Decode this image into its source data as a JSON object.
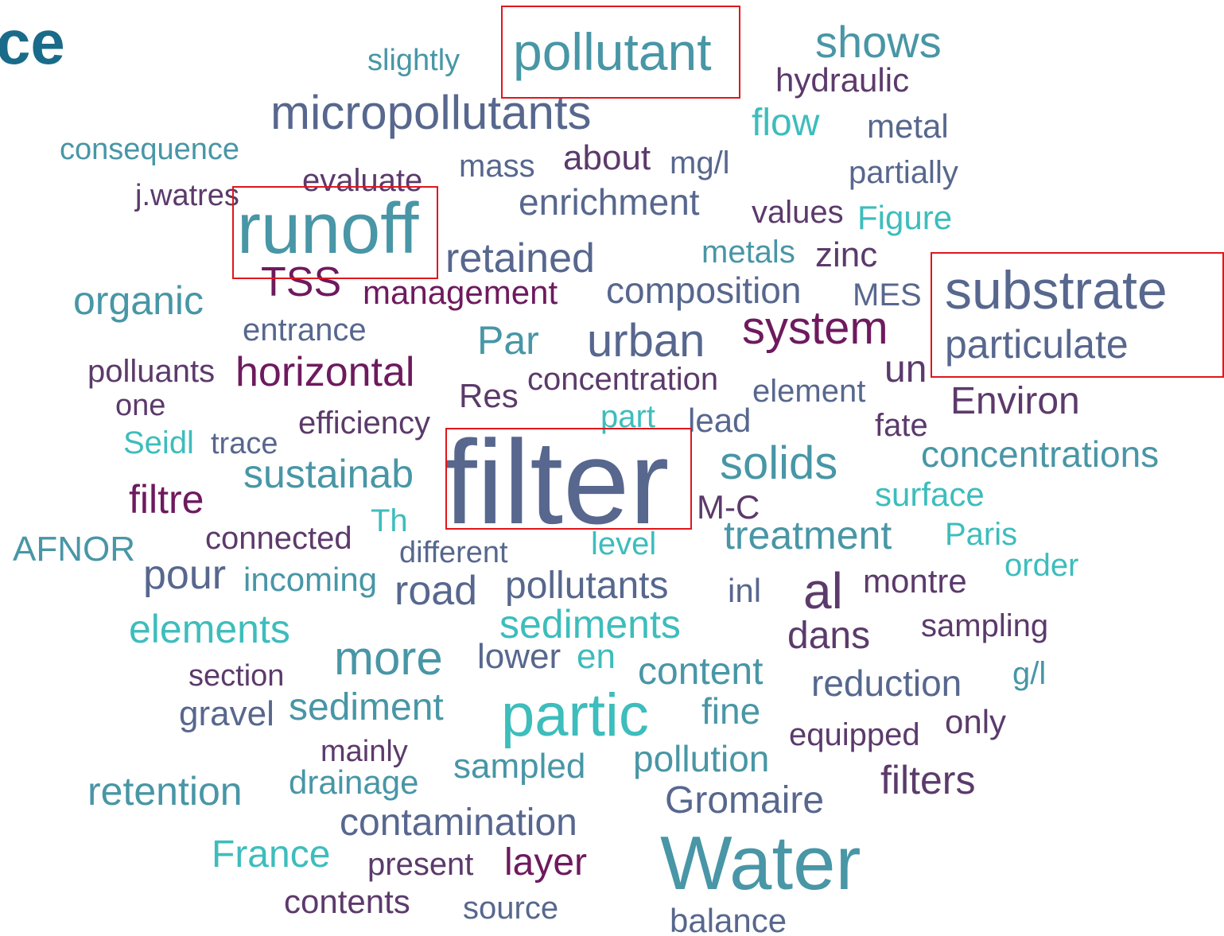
{
  "header": {
    "title_fragment": "ce"
  },
  "words": [
    "slightly",
    "pollutant",
    "shows",
    "hydraulic",
    "micropollutants",
    "flow",
    "metal",
    "consequence",
    "mass",
    "about",
    "mg/l",
    "evaluate",
    "partially",
    "j.watres",
    "enrichment",
    "runoff",
    "values",
    "Figure",
    "retained",
    "metals",
    "zinc",
    "TSS",
    "organic",
    "management",
    "composition",
    "MES",
    "substrate",
    "entrance",
    "Par",
    "urban",
    "system",
    "particulate",
    "polluants",
    "horizontal",
    "un",
    "concentration",
    "element",
    "Res",
    "one",
    "Environ",
    "part",
    "lead",
    "fate",
    "efficiency",
    "Seidl",
    "trace",
    "filter",
    "solids",
    "concentrations",
    "sustainab",
    "filtre",
    "surface",
    "M-C",
    "Th",
    "connected",
    "AFNOR",
    "treatment",
    "Paris",
    "different",
    "level",
    "order",
    "pour",
    "incoming",
    "road",
    "pollutants",
    "inl",
    "al",
    "montre",
    "elements",
    "sediments",
    "dans",
    "sampling",
    "more",
    "lower",
    "en",
    "content",
    "section",
    "reduction",
    "g/l",
    "gravel",
    "sediment",
    "partic",
    "fine",
    "only",
    "equipped",
    "mainly",
    "sampled",
    "pollution",
    "filters",
    "retention",
    "drainage",
    "Gromaire",
    "contamination",
    "Water",
    "France",
    "present",
    "layer",
    "contents",
    "source",
    "balance"
  ]
}
